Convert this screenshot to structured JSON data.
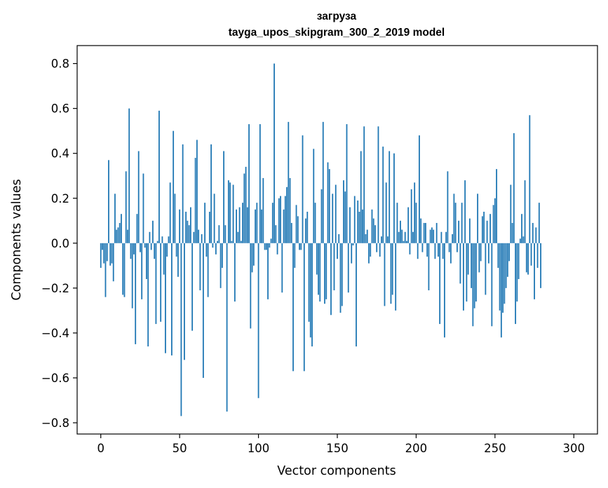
{
  "chart_data": {
    "type": "bar",
    "title_line1": "загруза",
    "title_line2": "tayga_upos_skipgram_300_2_2019 model",
    "xlabel": "Vector components",
    "ylabel": "Components values",
    "xlim": [
      -15,
      315
    ],
    "ylim": [
      -0.85,
      0.88
    ],
    "xticks": [
      0,
      50,
      100,
      150,
      200,
      250,
      300
    ],
    "xtick_labels": [
      "0",
      "50",
      "100",
      "150",
      "200",
      "250",
      "300"
    ],
    "yticks": [
      -0.8,
      -0.6,
      -0.4,
      -0.2,
      0.0,
      0.2,
      0.4,
      0.6,
      0.8
    ],
    "ytick_labels": [
      "−0.8",
      "−0.6",
      "−0.4",
      "−0.2",
      "0.0",
      "0.2",
      "0.4",
      "0.6",
      "0.8"
    ],
    "bar_color": "#1f77b4",
    "grid": false,
    "values": [
      -0.11,
      -0.03,
      -0.09,
      -0.24,
      -0.08,
      0.37,
      -0.1,
      -0.09,
      -0.17,
      0.22,
      0.06,
      0.07,
      0.09,
      0.13,
      -0.23,
      -0.24,
      0.32,
      0.06,
      0.6,
      -0.07,
      -0.29,
      -0.05,
      -0.45,
      0.13,
      0.41,
      -0.04,
      -0.25,
      0.31,
      -0.02,
      -0.16,
      -0.46,
      0.05,
      -0.03,
      0.1,
      -0.07,
      -0.36,
      0.01,
      0.59,
      -0.35,
      0.03,
      -0.14,
      -0.49,
      -0.06,
      0.03,
      0.27,
      -0.5,
      0.5,
      0.22,
      -0.06,
      -0.15,
      0.15,
      -0.77,
      0.44,
      -0.52,
      0.14,
      0.1,
      0.08,
      0.16,
      -0.39,
      0.05,
      0.38,
      0.46,
      0.06,
      -0.21,
      0.04,
      -0.6,
      0.18,
      -0.06,
      -0.24,
      0.14,
      0.44,
      -0.02,
      0.22,
      -0.05,
      0.01,
      0.08,
      -0.2,
      -0.11,
      0.41,
      0.08,
      -0.75,
      0.28,
      0.27,
      0.01,
      0.26,
      -0.26,
      0.15,
      0.05,
      0.16,
      0.01,
      0.18,
      0.31,
      0.34,
      0.16,
      0.53,
      -0.38,
      -0.13,
      -0.1,
      0.15,
      0.18,
      -0.69,
      0.53,
      0.15,
      0.29,
      -0.03,
      -0.03,
      -0.25,
      -0.02,
      0.02,
      0.18,
      0.8,
      0.08,
      -0.05,
      0.2,
      0.21,
      -0.22,
      0.15,
      0.21,
      0.25,
      0.54,
      0.29,
      0.09,
      -0.57,
      -0.11,
      0.17,
      0.12,
      -0.03,
      -0.03,
      0.48,
      -0.57,
      0.11,
      0.14,
      -0.35,
      -0.42,
      -0.46,
      0.42,
      0.18,
      -0.14,
      -0.23,
      -0.26,
      0.24,
      0.54,
      -0.27,
      -0.25,
      0.36,
      0.33,
      -0.32,
      0.22,
      -0.21,
      0.26,
      -0.07,
      0.04,
      -0.31,
      -0.28,
      0.28,
      0.23,
      0.53,
      -0.22,
      0.16,
      -0.09,
      -0.01,
      0.21,
      -0.46,
      0.19,
      0.14,
      0.41,
      0.15,
      0.52,
      0.04,
      0.06,
      -0.09,
      -0.06,
      0.15,
      0.11,
      0.08,
      -0.04,
      0.52,
      -0.06,
      0.03,
      0.43,
      -0.28,
      0.27,
      0.03,
      0.41,
      -0.27,
      -0.23,
      0.4,
      -0.3,
      0.18,
      0.05,
      0.1,
      0.06,
      0.01,
      0.05,
      0.01,
      0.16,
      -0.05,
      0.24,
      0.05,
      0.27,
      0.18,
      -0.07,
      0.48,
      0.11,
      -0.04,
      0.09,
      0.09,
      -0.06,
      -0.21,
      0.06,
      0.07,
      0.06,
      -0.07,
      0.09,
      -0.06,
      -0.36,
      0.05,
      -0.07,
      -0.42,
      0.05,
      0.32,
      -0.04,
      -0.09,
      0.04,
      0.22,
      0.18,
      -0.04,
      0.1,
      -0.18,
      0.18,
      -0.3,
      0.28,
      -0.26,
      -0.14,
      0.11,
      -0.2,
      -0.37,
      -0.29,
      -0.26,
      0.22,
      -0.13,
      -0.08,
      0.12,
      0.14,
      -0.23,
      0.1,
      -0.09,
      0.13,
      -0.37,
      0.17,
      0.2,
      0.33,
      -0.11,
      -0.3,
      -0.42,
      -0.31,
      -0.27,
      -0.2,
      -0.15,
      -0.08,
      0.26,
      0.09,
      0.49,
      -0.36,
      -0.26,
      -0.16,
      0.02,
      0.13,
      0.03,
      0.28,
      -0.13,
      -0.14,
      0.57,
      -0.1,
      0.09,
      -0.25,
      0.07,
      -0.11,
      0.18,
      -0.2
    ]
  }
}
